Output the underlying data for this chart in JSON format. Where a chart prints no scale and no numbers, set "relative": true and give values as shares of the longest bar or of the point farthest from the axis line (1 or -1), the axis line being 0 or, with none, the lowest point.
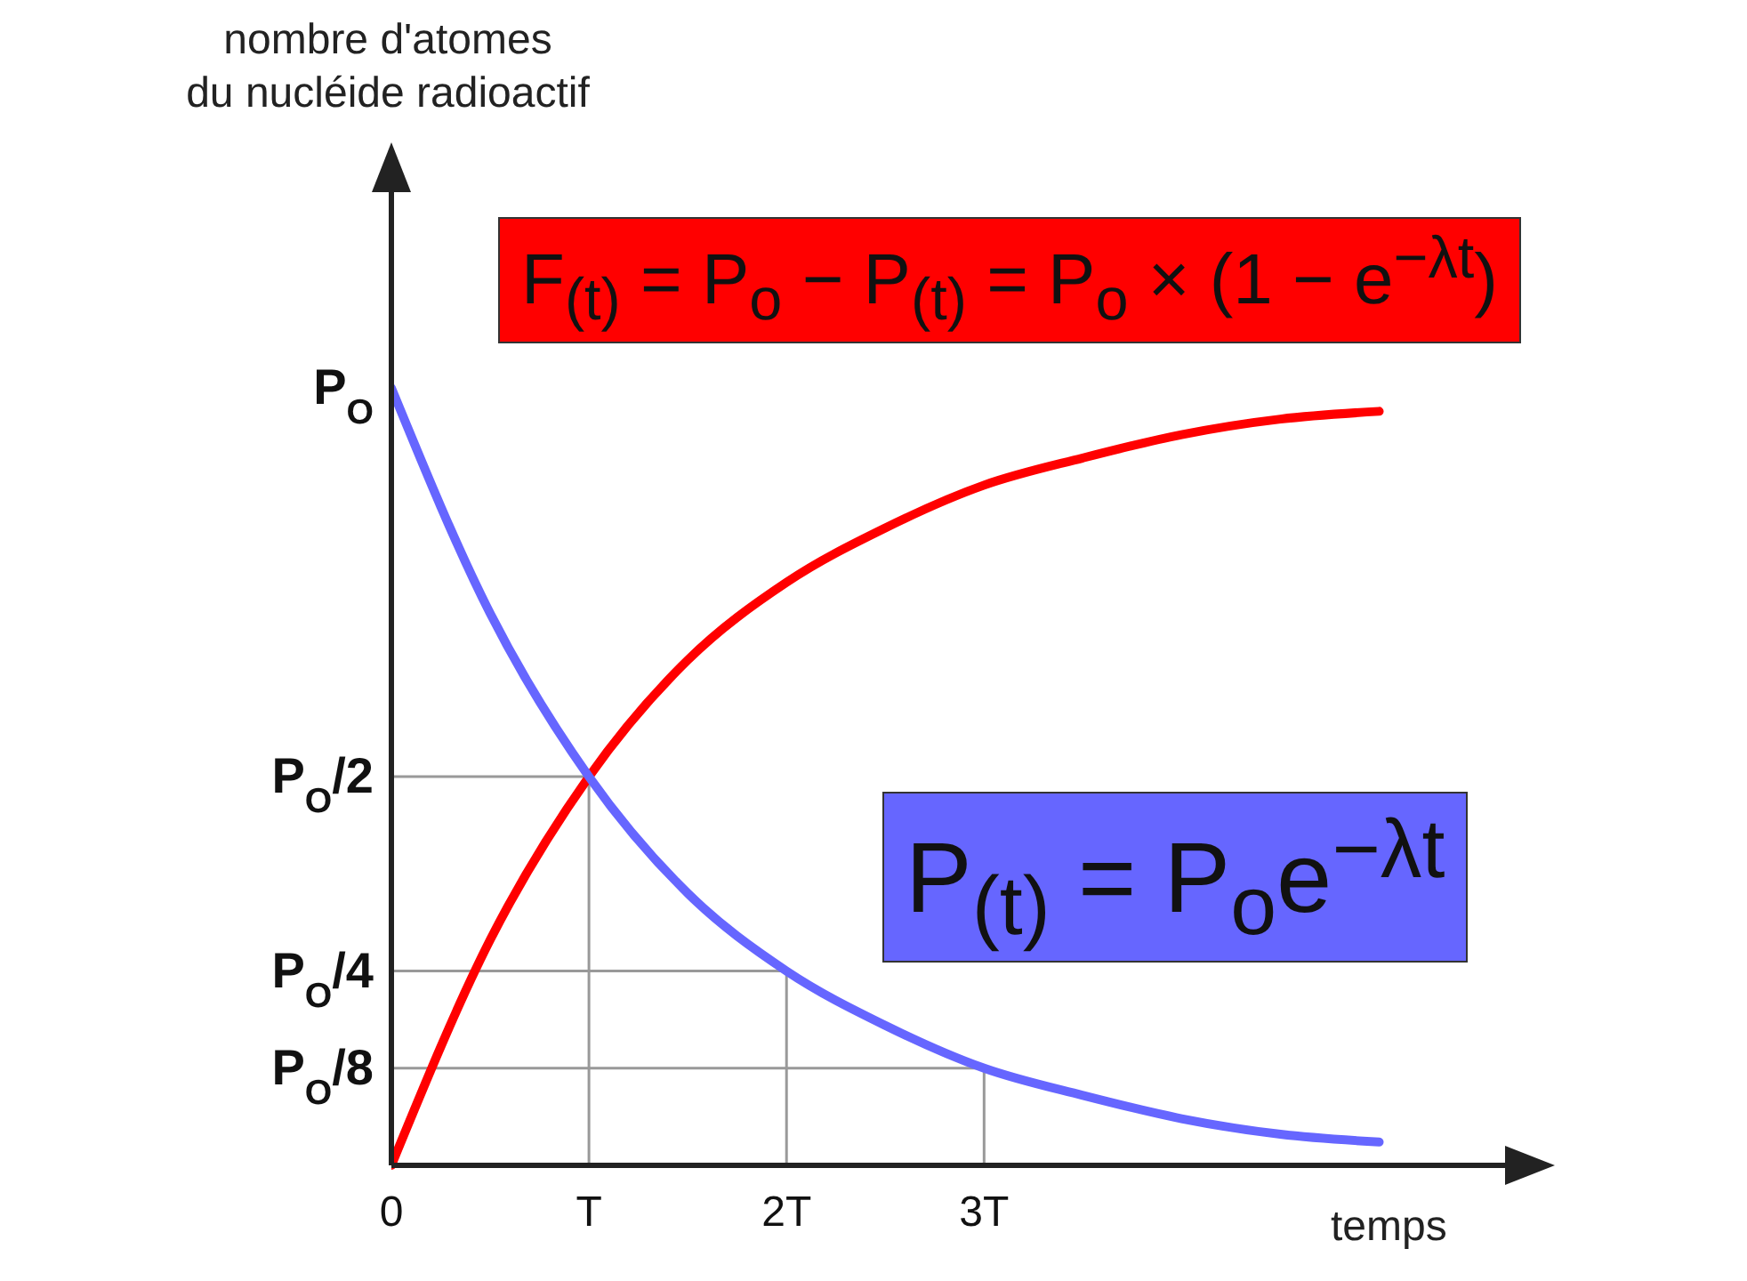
{
  "chart_data": {
    "type": "line",
    "xlabel": "temps",
    "x": [
      0,
      0.5,
      1,
      1.5,
      2,
      2.5,
      3,
      3.5,
      4,
      4.5,
      5
    ],
    "series": [
      {
        "name": "F$_{(t)}$ = P$_{o}$ − P$_{(t)}$ = P$_{o}$ × (1 − e$^{−λt}$)",
        "color": "#ff0000",
        "values": [
          0,
          0.29,
          0.5,
          0.65,
          0.75,
          0.82,
          0.875,
          0.91,
          0.94,
          0.96,
          0.97
        ]
      },
      {
        "name": "P$_{(t)}$ = P$_{o}$e$^{−λt}$",
        "color": "#6666ff",
        "values": [
          1,
          0.71,
          0.5,
          0.35,
          0.25,
          0.18,
          0.125,
          0.09,
          0.06,
          0.04,
          0.03
        ]
      }
    ],
    "xlim": [
      0,
      5.7
    ],
    "relative": true,
    "xticks": [
      0,
      {
        "value": 1,
        "label": "T"
      },
      {
        "value": 2,
        "label": "2T"
      },
      {
        "value": 3,
        "label": "3T"
      }
    ],
    "annotations": [
      "nombre d'atomes\ndu nucléide radioactif",
      {
        "text": "P$_{O}$",
        "x": 0,
        "y": 1
      }
    ],
    "ref_lines": [
      {
        "axis": "y",
        "value": 0.5,
        "label": "P$_{O}$/2",
        "color": "#999999"
      },
      {
        "axis": "y",
        "value": 0.25,
        "label": "P$_{O}$/4",
        "color": "#999999"
      },
      {
        "axis": "y",
        "value": 0.125,
        "label": "P$_{O}$/8",
        "color": "#999999"
      },
      {
        "axis": "x",
        "value": 1,
        "color": "#999999"
      },
      {
        "axis": "x",
        "value": 2,
        "color": "#999999"
      },
      {
        "axis": "x",
        "value": 3,
        "color": "#999999"
      }
    ],
    "grid": false,
    "legend": false,
    "marker": "none",
    "line_style": "solid"
  }
}
